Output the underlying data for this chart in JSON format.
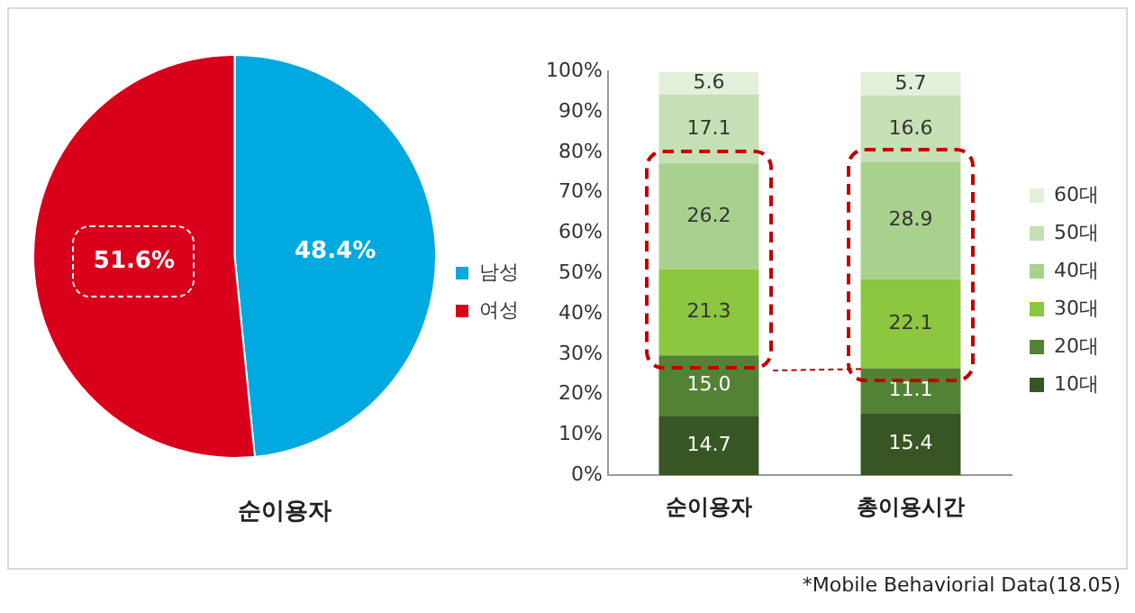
{
  "chart_data": [
    {
      "type": "pie",
      "xlabel": "순이용자",
      "categories": [
        "남성",
        "여성"
      ],
      "values": [
        48.4,
        51.6
      ],
      "colors": [
        "#00a9e0",
        "#d9001b"
      ],
      "value_labels": [
        "48.4%",
        "51.6%"
      ],
      "legend": "right"
    },
    {
      "type": "bar",
      "stacked": true,
      "categories": [
        "순이용자",
        "총이용시간"
      ],
      "ylim": [
        0,
        100
      ],
      "yticks": [
        {
          "value": 0,
          "label": "0%"
        },
        {
          "value": 10,
          "label": "10%"
        },
        {
          "value": 20,
          "label": "20%"
        },
        {
          "value": 30,
          "label": "30%"
        },
        {
          "value": 40,
          "label": "40%"
        },
        {
          "value": 50,
          "label": "50%"
        },
        {
          "value": 60,
          "label": "60%"
        },
        {
          "value": 70,
          "label": "70%"
        },
        {
          "value": 80,
          "label": "80%"
        },
        {
          "value": 90,
          "label": "90%"
        },
        {
          "value": 100,
          "label": "100%"
        }
      ],
      "legend": "right",
      "grid": false,
      "series": [
        {
          "name": "10대",
          "color": "#375623",
          "values": [
            14.7,
            15.4
          ],
          "value_labels": [
            "14.7",
            "15.4"
          ]
        },
        {
          "name": "20대",
          "color": "#548235",
          "values": [
            15.0,
            11.1
          ],
          "value_labels": [
            "15.0",
            "11.1"
          ]
        },
        {
          "name": "30대",
          "color": "#8dc63f",
          "values": [
            21.3,
            22.1
          ],
          "value_labels": [
            "21.3",
            "22.1"
          ]
        },
        {
          "name": "40대",
          "color": "#a9d18e",
          "values": [
            26.2,
            28.9
          ],
          "value_labels": [
            "26.2",
            "28.9"
          ]
        },
        {
          "name": "50대",
          "color": "#c5e0b4",
          "values": [
            17.1,
            16.6
          ],
          "value_labels": [
            "17.1",
            "16.6"
          ]
        },
        {
          "name": "60대",
          "color": "#e2f0d9",
          "values": [
            5.6,
            5.7
          ],
          "value_labels": [
            "5.6",
            "5.7"
          ]
        }
      ],
      "annotations": [
        "*Mobile Behaviorial Data(18.05)"
      ]
    }
  ]
}
